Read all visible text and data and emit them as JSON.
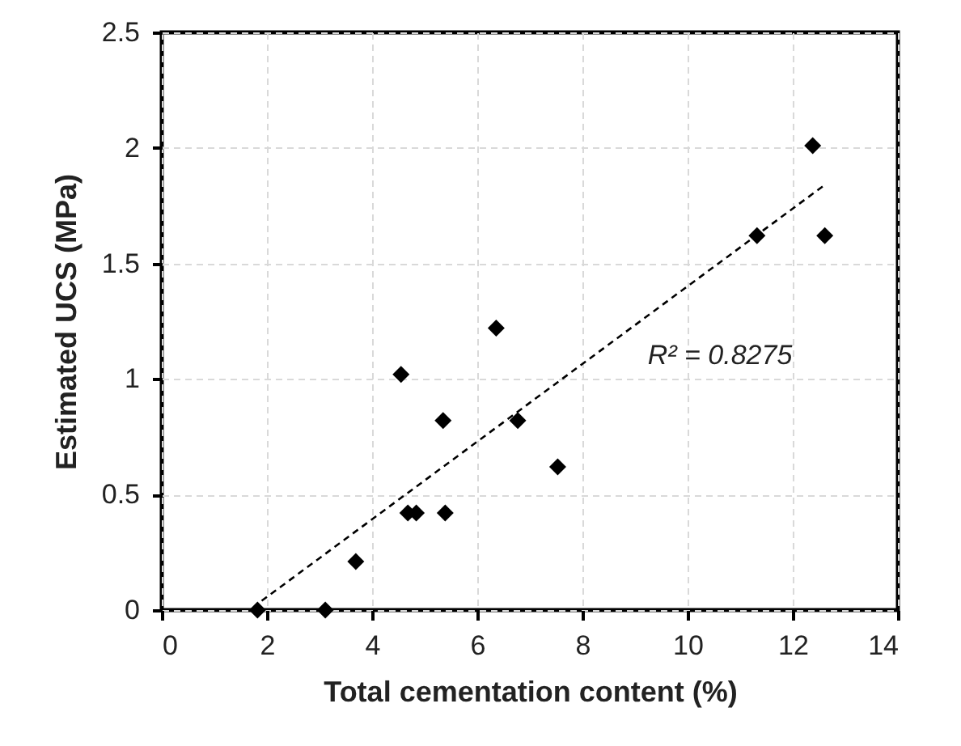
{
  "chart_data": {
    "type": "scatter",
    "xlabel": "Total cementation content (%)",
    "ylabel": "Estimated UCS (MPa)",
    "xlim": [
      0,
      14
    ],
    "xticks": [
      0,
      2,
      4,
      6,
      8,
      10,
      12,
      14
    ],
    "ylim": [
      0,
      2.5
    ],
    "yticks": [
      0,
      0.5,
      1,
      1.5,
      2,
      2.5
    ],
    "grid": true,
    "series": [
      {
        "color": "#000000",
        "marker": "diamond",
        "x": [
          1.82,
          3.11,
          3.69,
          4.55,
          4.68,
          4.84,
          5.35,
          5.39,
          6.36,
          6.77,
          7.53,
          11.32,
          12.38,
          12.61
        ],
        "values": [
          0,
          0,
          0.21,
          1.02,
          0.42,
          0.42,
          0.82,
          0.42,
          1.22,
          0.82,
          0.62,
          1.62,
          2.01,
          1.62
        ]
      },
      {
        "type": "line",
        "color": "#000000",
        "line_style": "dashed",
        "marker": "none",
        "x": [
          1.9,
          12.61
        ],
        "values": [
          0.04,
          1.84
        ]
      }
    ],
    "annotations": [
      "R² = 0.8275"
    ]
  }
}
